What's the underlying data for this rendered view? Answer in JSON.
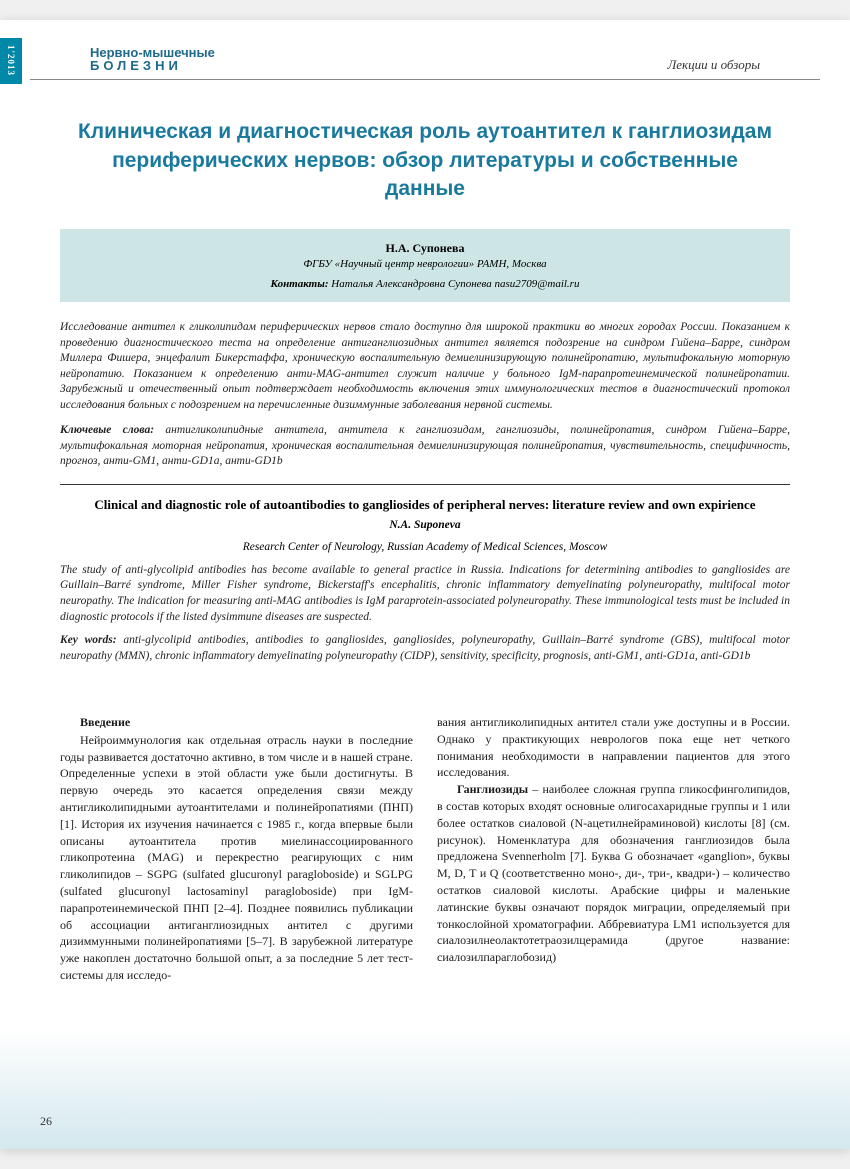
{
  "spine": {
    "issue": "1'2013"
  },
  "header": {
    "journal_line1": "Нервно-мышечные",
    "journal_line2": "БОЛЕЗНИ",
    "section": "Лекции и обзоры"
  },
  "title_ru": "Клиническая и диагностическая роль аутоантител к ганглиозидам периферических нервов: обзор литературы и собственные данные",
  "author_box": {
    "name": "Н.А. Супонева",
    "affiliation": "ФГБУ «Научный центр неврологии» РАМН, Москва",
    "contact_label": "Контакты:",
    "contact_text": " Наталья Александровна Супонева nasu2709@mail.ru"
  },
  "abstract_ru": "Исследование антител к гликолипидам периферических нервов стало доступно для широкой практики во многих городах России. Показанием к проведению диагностического теста на определение антиганглиозидных антител является подозрение на синдром Гийена–Барре, синдром Миллера Фишера, энцефалит Бикерстаффа, хроническую воспалительную демиелинизирующую полинейропатию, мультифокальную моторную нейропатию. Показанием к определению анти-MAG-антител служит наличие у больного IgM-парапротеинемической полинейропатии. Зарубежный и отечественный опыт подтверждает необходимость включения этих иммунологических тестов в диагностический протокол исследования больных с подозрением на перечисленные дизиммунные заболевания нервной системы.",
  "keywords_ru": {
    "label": "Ключевые слова:",
    "text": " антигликолипидные антитела, антитела к ганглиозидам, ганглиозиды, полинейропатия, синдром Гийена–Барре, мультифокальная моторная нейропатия, хроническая воспалительная демиелинизирующая полинейропатия, чувствительность, специфичность, прогноз, анти-GM1, анти-GD1a, анти-GD1b"
  },
  "title_en": "Clinical and diagnostic role of autoantibodies to gangliosides of peripheral nerves: literature review and own expirience",
  "author_en": "N.A. Suponeva",
  "affil_en": "Research Center of Neurology, Russian Academy of Medical Sciences, Moscow",
  "abstract_en": "The study of anti-glycolipid antibodies has become available to general practice in Russia. Indications for determining antibodies to gangliosides are Guillain–Barré syndrome, Miller Fisher syndrome, Bickerstaff's encephalitis, chronic inflammatory demyelinating polyneuropathy, multifocal motor neuropathy. The indication for measuring anti-MAG antibodies is IgM paraprotein-associated polyneuropathy. These immunological tests must be included in diagnostic protocols if the listed dysimmune diseases are suspected.",
  "keywords_en": {
    "label": "Key words:",
    "text": " anti-glycolipid antibodies, antibodies to gangliosides, gangliosides, polyneuropathy, Guillain–Barré syndrome (GBS), multifocal motor neuropathy (MMN), chronic inflammatory demyelinating polyneuropathy (CIDP), sensitivity, specificity, prognosis, anti-GM1, anti-GD1a, anti-GD1b"
  },
  "body": {
    "heading": "Введение",
    "col1": "Нейроиммунология как отдельная отрасль науки в последние годы развивается достаточно активно, в том числе и в нашей стране. Определенные успехи в этой области уже были достигнуты. В первую очередь это касается определения связи между антигликолипидными аутоантителами и полинейропатиями (ПНП) [1]. История их изучения начинается с 1985 г., когда впервые были описаны аутоантитела против миелинассоциированного гликопротеина (MAG) и перекрестно реагирующих с ним гликолипидов – SGPG (sulfated glucuronyl paragloboside) и SGLPG (sulfated glucuronyl lactosaminyl paragloboside) при IgM-парапротеинемической ПНП [2–4]. Позднее появились публикации об ассоциации антиганглиозидных антител с другими дизиммунными полинейропатиями [5–7]. В зарубежной литературе уже накоплен достаточно большой опыт, а за последние 5 лет тест-системы для исследо-",
    "col2_p1": "вания антигликолипидных антител стали уже доступны и в России. Однако у практикующих неврологов пока еще нет четкого понимания необходимости в направлении пациентов для этого исследования.",
    "col2_p2_lead": "Ганглиозиды",
    "col2_p2_rest": " – наиболее сложная группа гликосфинголипидов, в состав которых входят основные олигосахаридные группы и 1 или более остатков сиаловой (N-ацетилнейраминовой) кислоты [8] (см. рисунок). Номенклатура для обозначения ганглиозидов была предложена Svennerholm [7]. Буква G обозначает «ganglion», буквы M, D, T и Q (соответственно моно-, ди-, три-, квадри-) – количество остатков сиаловой кислоты. Арабские цифры и маленькие латинские буквы означают порядок миграции, определяемый при тонкослойной хроматографии. Аббревиатура LM1 используется для сиалозилнеолактотетраозилцерамида (другое название: сиалозилпараглобозид)"
  },
  "page_number": "26",
  "colors": {
    "brand": "#1a7a9e",
    "header_text": "#1e6a8a",
    "author_box_bg": "#cde5e4",
    "spine_bg": "#0088a8",
    "gradient_end": "#d4e8ee"
  }
}
